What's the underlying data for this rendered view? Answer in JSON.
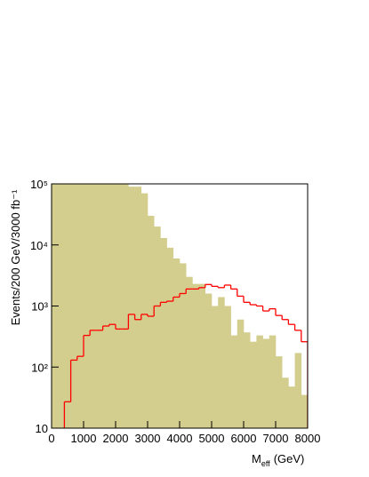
{
  "chart_data": {
    "type": "histogram",
    "bins": [
      0,
      200,
      400,
      600,
      800,
      1000,
      1200,
      1400,
      1600,
      1800,
      2000,
      2200,
      2400,
      2600,
      2800,
      3000,
      3200,
      3400,
      3600,
      3800,
      4000,
      4200,
      4400,
      4600,
      4800,
      5000,
      5200,
      5400,
      5600,
      5800,
      6000,
      6200,
      6400,
      6600,
      6800,
      7000,
      7200,
      7400,
      7600,
      7800,
      8000
    ],
    "series": [
      {
        "color": "#d3ce8e",
        "style": "filled",
        "values": [
          100000,
          100000,
          100000,
          100000,
          100000,
          100000,
          100000,
          100000,
          100000,
          100000,
          100000,
          100000,
          90000,
          90000,
          70000,
          30000,
          20000,
          13000,
          9000,
          6000,
          5000,
          3000,
          2300,
          2300,
          1600,
          1000,
          1400,
          1000,
          330,
          600,
          370,
          260,
          330,
          290,
          330,
          150,
          67,
          48,
          170,
          35
        ]
      },
      {
        "color": "#ff0000",
        "style": "step",
        "values": [
          null,
          null,
          27,
          130,
          150,
          330,
          400,
          400,
          470,
          500,
          420,
          420,
          730,
          600,
          730,
          680,
          1000,
          1150,
          1200,
          1400,
          1600,
          1900,
          1900,
          2000,
          2250,
          2100,
          2000,
          2200,
          1900,
          1450,
          1150,
          1050,
          1000,
          830,
          900,
          700,
          600,
          500,
          400,
          260
        ]
      }
    ],
    "xlim": [
      0,
      8000
    ],
    "xticks": [
      0,
      1000,
      2000,
      3000,
      4000,
      5000,
      6000,
      7000,
      8000
    ],
    "ylim": [
      10,
      100000
    ],
    "log_y": true,
    "yticks": [
      10,
      {
        "value": 100,
        "label": "10²"
      },
      {
        "value": 1000,
        "label": "10³"
      },
      {
        "value": 10000,
        "label": "10⁴"
      },
      {
        "value": 100000,
        "label": "10⁵"
      }
    ],
    "ylabel": "Events/200 GeV/3000 fb⁻¹",
    "xlabel": {
      "main": "M",
      "sub": "eff",
      "unit": "(GeV)"
    }
  }
}
